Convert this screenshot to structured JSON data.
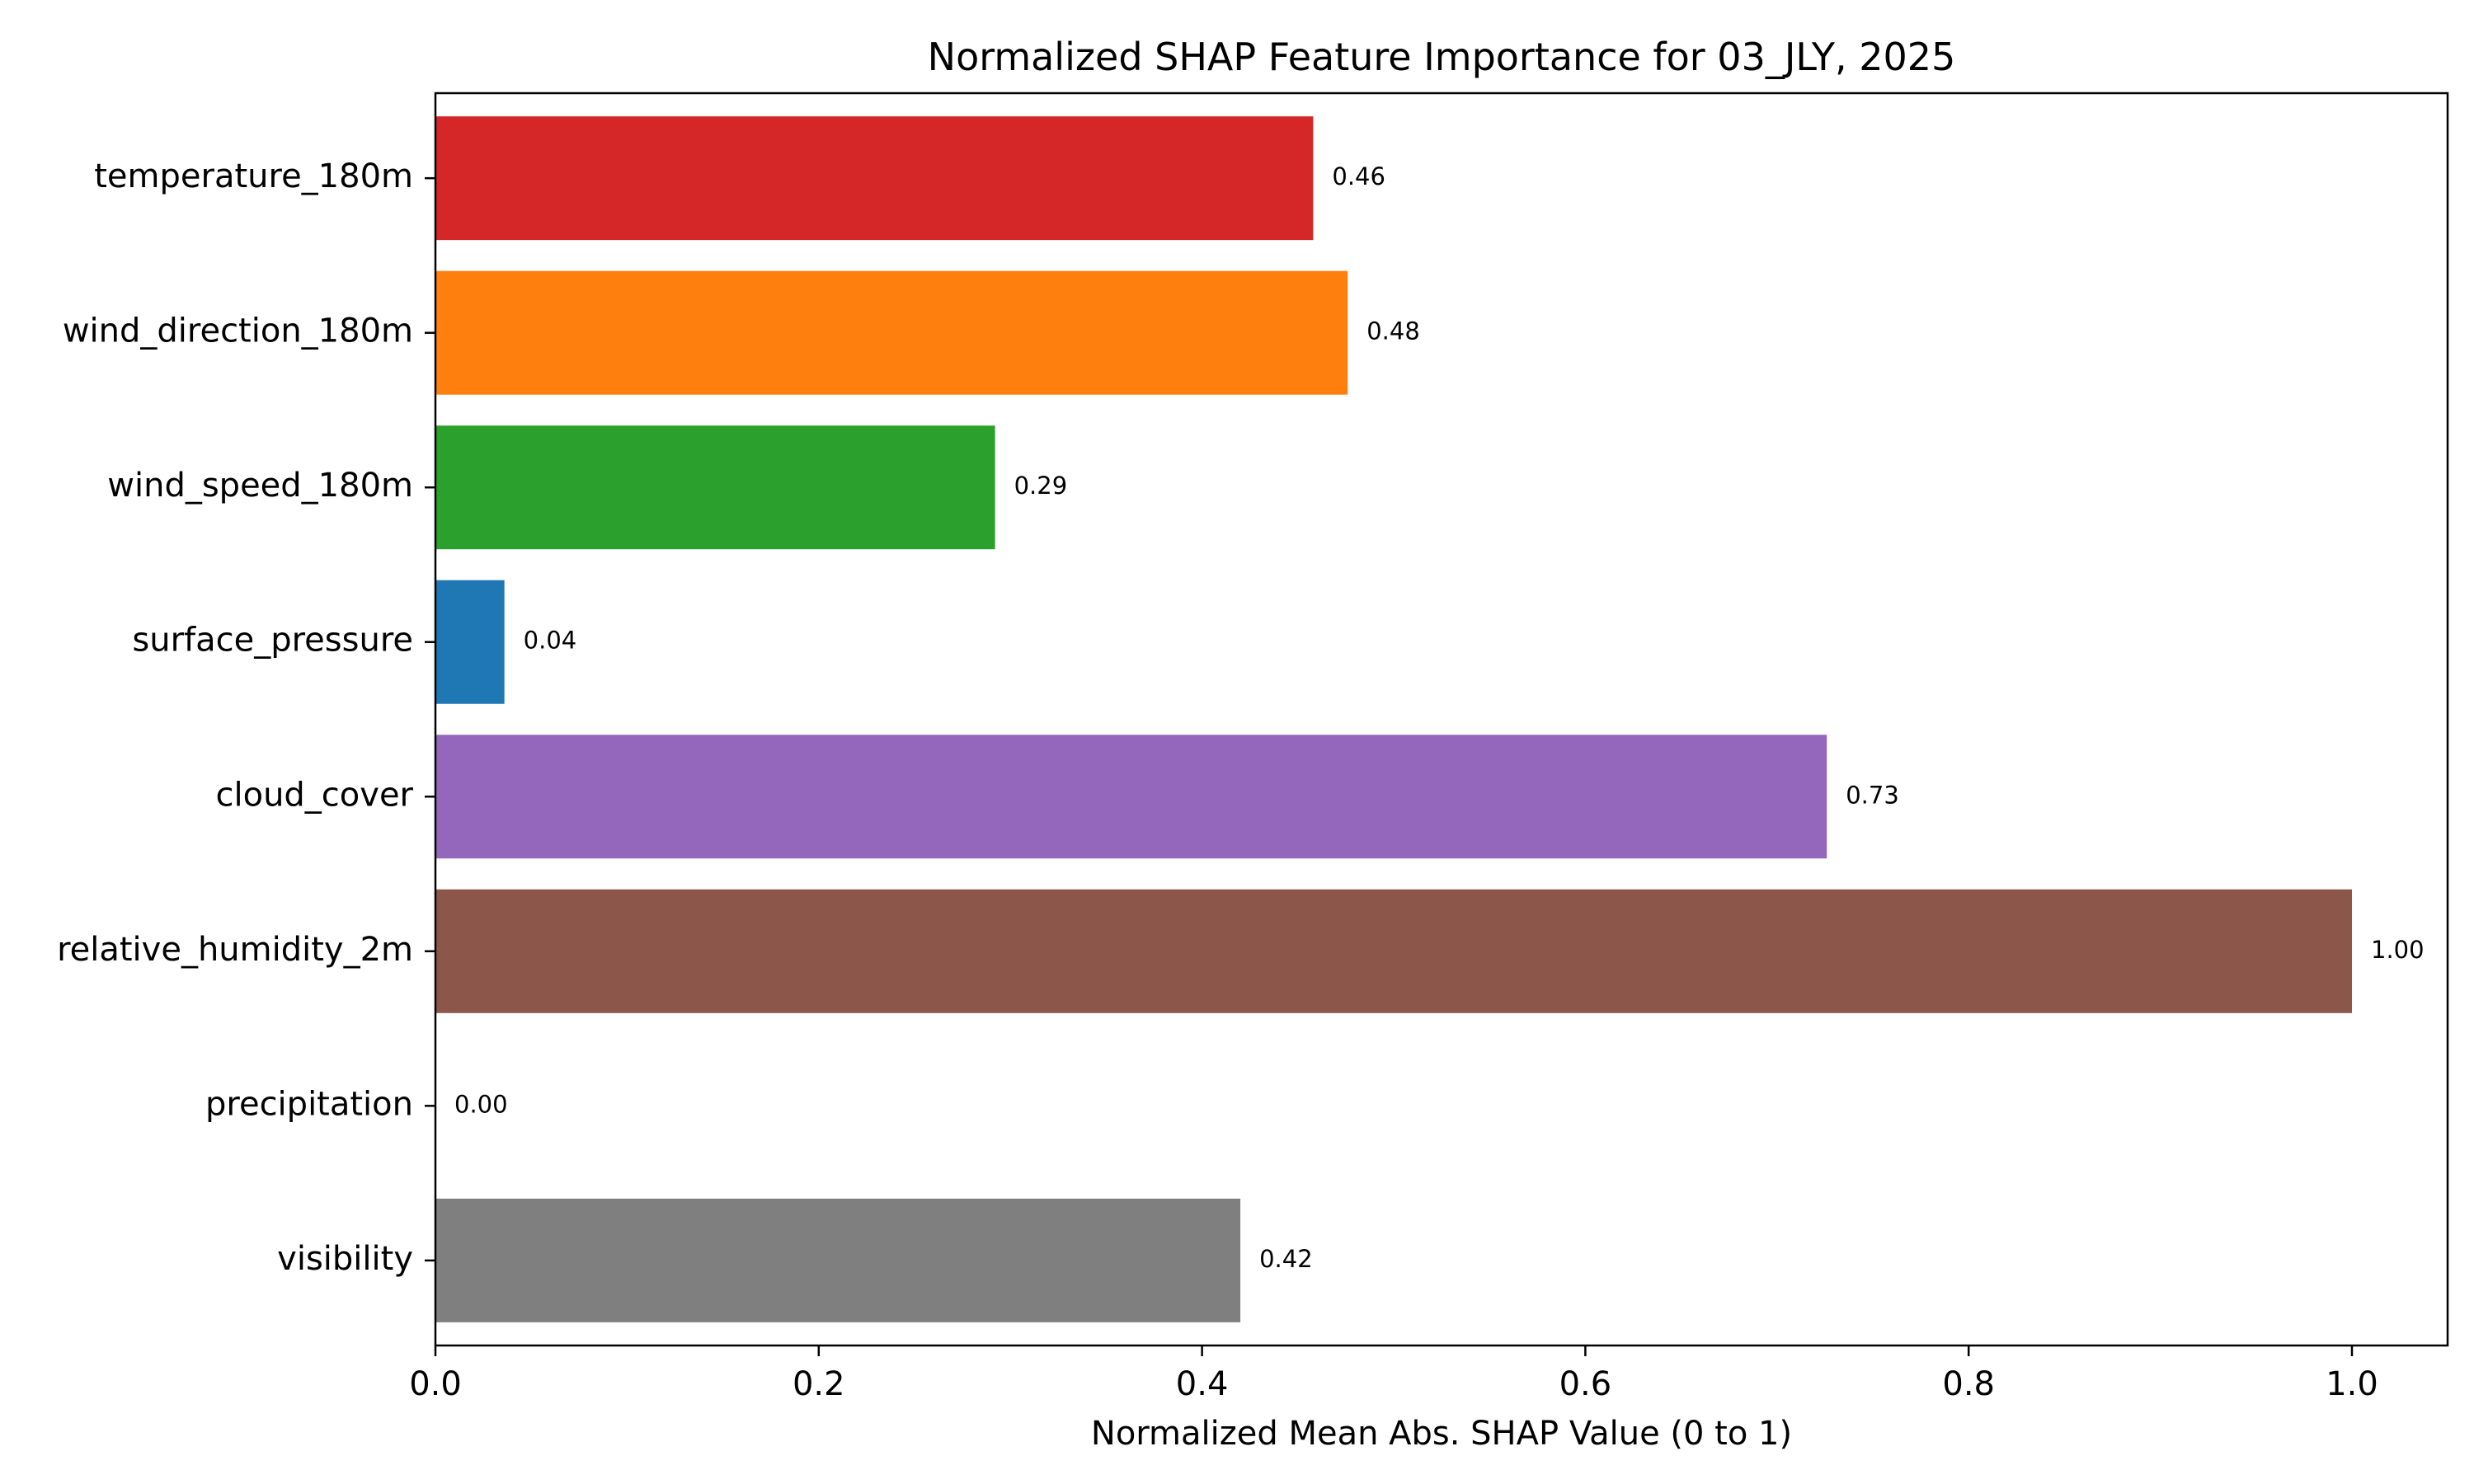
{
  "chart_data": {
    "type": "bar",
    "orientation": "horizontal",
    "title": "Normalized SHAP Feature Importance for 03_JLY, 2025",
    "xlabel": "Normalized Mean Abs. SHAP Value (0 to 1)",
    "ylabel": "",
    "xlim": [
      0,
      1.05
    ],
    "xticks": [
      0.0,
      0.2,
      0.4,
      0.6,
      0.8,
      1.0
    ],
    "xtick_labels": [
      "0.0",
      "0.2",
      "0.4",
      "0.6",
      "0.8",
      "1.0"
    ],
    "grid": false,
    "categories": [
      "temperature_180m",
      "wind_direction_180m",
      "wind_speed_180m",
      "surface_pressure",
      "cloud_cover",
      "relative_humidity_2m",
      "precipitation",
      "visibility"
    ],
    "values": [
      0.458,
      0.476,
      0.292,
      0.036,
      0.726,
      1.0,
      0.0,
      0.42
    ],
    "data_labels": [
      "0.46",
      "0.48",
      "0.29",
      "0.04",
      "0.73",
      "1.00",
      "0.00",
      "0.42"
    ],
    "colors": [
      "#d62728",
      "#ff7f0e",
      "#2ca02c",
      "#1f77b4",
      "#9467bd",
      "#8c564b",
      "#e377c2",
      "#7f7f7f"
    ]
  }
}
